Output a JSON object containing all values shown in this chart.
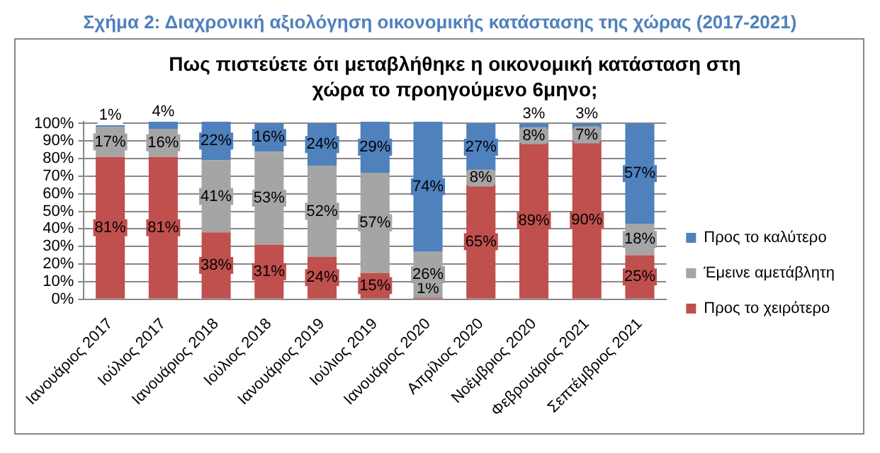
{
  "chart_data": {
    "type": "bar",
    "stacked": true,
    "title": "Σχήμα 2: Διαχρονική αξιολόγηση οικονομικής κατάστασης της χώρας (2017-2021)",
    "subtitle": "Πως πιστεύετε ότι μεταβλήθηκε η οικονομική κατάσταση στη χώρα το προηγούμενο 6μηνο;",
    "categories": [
      "Ιανουάριος 2017",
      "Ιούλιος 2017",
      "Ιανουάριος 2018",
      "Ιούλιος 2018",
      "Ιανουάριος 2019",
      "Ιούλιος 2019",
      "Ιανουάριος 2020",
      "Απρίλιος 2020",
      "Νοέμβριος 2020",
      "Φεβρουάριος 2021",
      "Σεπτέμβριος 2021"
    ],
    "series": [
      {
        "name": "Προς το χειρότερο",
        "color": "#c0504d",
        "values": [
          81,
          81,
          38,
          31,
          24,
          15,
          1,
          65,
          89,
          90,
          25
        ],
        "value_labels": [
          "81%",
          "81%",
          "38%",
          "31%",
          "24%",
          "15%",
          "1%",
          "65%",
          "89%",
          "90%",
          "25%"
        ]
      },
      {
        "name": "Έμεινε αμετάβλητη",
        "color": "#a5a5a5",
        "values": [
          17,
          16,
          41,
          53,
          52,
          57,
          26,
          8,
          8,
          7,
          18
        ],
        "value_labels": [
          "17%",
          "16%",
          "41%",
          "53%",
          "52%",
          "57%",
          "26%",
          "8%",
          "8%",
          "7%",
          "18%"
        ]
      },
      {
        "name": "Προς το καλύτερο",
        "color": "#4f81bd",
        "values": [
          1,
          4,
          22,
          16,
          24,
          29,
          74,
          27,
          3,
          3,
          57
        ],
        "value_labels": [
          "1%",
          "4%",
          "22%",
          "16%",
          "24%",
          "29%",
          "74%",
          "27%",
          "3%",
          "3%",
          "57%"
        ]
      }
    ],
    "ylim": [
      0,
      101
    ],
    "yticks": [
      {
        "value": 0,
        "label": "0%"
      },
      {
        "value": 10,
        "label": "10%"
      },
      {
        "value": 20,
        "label": "20%"
      },
      {
        "value": 30,
        "label": "30%"
      },
      {
        "value": 40,
        "label": "40%"
      },
      {
        "value": 50,
        "label": "50%"
      },
      {
        "value": 60,
        "label": "60%"
      },
      {
        "value": 70,
        "label": "70%"
      },
      {
        "value": 80,
        "label": "80%"
      },
      {
        "value": 90,
        "label": "90%"
      },
      {
        "value": 100,
        "label": "100%"
      }
    ],
    "grid": "y",
    "legend": "right"
  }
}
